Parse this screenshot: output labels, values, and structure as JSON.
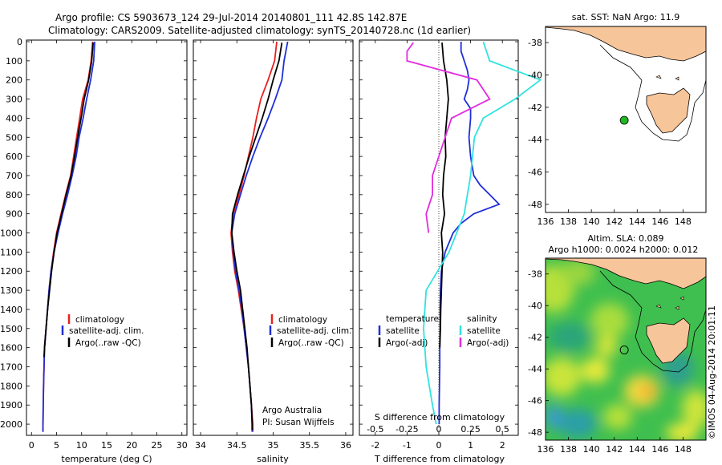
{
  "header": {
    "line1": "Argo profile: CS 5903673_124 29-Jul-2014 20140801_111 42.8S 142.87E",
    "line2": "Climatology: CARS2009. Satellite-adjusted climatology: synTS_20140728.nc (1d earlier)"
  },
  "colors": {
    "climatology": "#e8211d",
    "satellite": "#1f2fd8",
    "argo": "#000000",
    "sat_salinity": "#2fe3e0",
    "argo_salinity": "#e22be0",
    "land": "#f7c59a",
    "marker": "#1fb81f",
    "sla_green": "#3fbf4f"
  },
  "chart_data": [
    {
      "type": "line",
      "panel": "temperature",
      "xlabel": "temperature (deg C)",
      "xlim": [
        -1,
        31
      ],
      "xticks": [
        0,
        5,
        10,
        15,
        20,
        25,
        30
      ],
      "ylim": [
        2050,
        0
      ],
      "yticks": [
        0,
        100,
        200,
        300,
        400,
        500,
        600,
        700,
        800,
        900,
        1000,
        1100,
        1200,
        1300,
        1400,
        1500,
        1600,
        1700,
        1800,
        1900,
        2000
      ],
      "legend": [
        "climatology",
        "satellite-adj. clim.",
        "Argo(..raw -QC)"
      ],
      "series": [
        {
          "name": "climatology",
          "color": "#e8211d",
          "depth": [
            0,
            100,
            200,
            300,
            400,
            500,
            600,
            700,
            800,
            900,
            1000,
            1100,
            1200,
            1300,
            1400,
            1500,
            1600,
            1700,
            1800,
            1900,
            2000,
            2040
          ],
          "values": [
            12.2,
            11.9,
            11.3,
            10.2,
            9.6,
            9.0,
            8.4,
            7.8,
            6.8,
            5.9,
            5.0,
            4.4,
            3.9,
            3.5,
            3.2,
            2.9,
            2.6,
            2.5,
            2.4,
            2.35,
            2.3,
            2.3
          ]
        },
        {
          "name": "satellite-adj. clim.",
          "color": "#1f2fd8",
          "depth": [
            0,
            100,
            200,
            300,
            400,
            500,
            600,
            700,
            800,
            900,
            1000,
            1100,
            1200,
            1300,
            1400,
            1500,
            1600,
            1700,
            1800,
            1900,
            2000,
            2040
          ],
          "values": [
            12.6,
            12.4,
            11.8,
            11.0,
            10.3,
            9.5,
            8.9,
            8.1,
            7.2,
            6.2,
            5.3,
            4.5,
            3.9,
            3.5,
            3.2,
            2.9,
            2.6,
            2.5,
            2.4,
            2.35,
            2.3,
            2.3
          ]
        },
        {
          "name": "Argo(..raw -QC)",
          "color": "#000000",
          "depth": [
            5,
            100,
            200,
            300,
            400,
            500,
            600,
            700,
            800,
            900,
            1000,
            1100,
            1200,
            1300,
            1400,
            1500,
            1600,
            1650
          ],
          "values": [
            12.3,
            12.0,
            11.4,
            10.5,
            9.9,
            9.2,
            8.6,
            7.9,
            6.9,
            6.0,
            5.1,
            4.5,
            4.0,
            3.6,
            3.2,
            2.9,
            2.6,
            2.5
          ]
        }
      ]
    },
    {
      "type": "line",
      "panel": "salinity",
      "xlabel": "salinity",
      "xlim": [
        33.9,
        36.1
      ],
      "xticks": [
        34,
        34.5,
        35,
        35.5,
        36
      ],
      "ylim": [
        2050,
        0
      ],
      "legend": [
        "climatology",
        "satellite-adj. clim.",
        "Argo(..raw -QC)"
      ],
      "annotation": [
        "Argo Australia",
        "PI: Susan Wijffels"
      ],
      "series": [
        {
          "name": "climatology",
          "color": "#e8211d",
          "depth": [
            0,
            100,
            200,
            300,
            400,
            500,
            600,
            700,
            800,
            900,
            1000,
            1100,
            1200,
            1300,
            1400,
            1500,
            1600,
            1700,
            1800,
            1900,
            2000,
            2040
          ],
          "values": [
            35.05,
            35.02,
            34.93,
            34.83,
            34.77,
            34.72,
            34.66,
            34.6,
            34.53,
            34.45,
            34.42,
            34.44,
            34.47,
            34.52,
            34.56,
            34.6,
            34.63,
            34.66,
            34.68,
            34.7,
            34.72,
            34.72
          ]
        },
        {
          "name": "satellite-adj. clim.",
          "color": "#1f2fd8",
          "depth": [
            0,
            100,
            200,
            300,
            400,
            500,
            600,
            700,
            800,
            900,
            1000,
            1100,
            1200,
            1300,
            1400,
            1500,
            1600,
            1700,
            1800,
            1900,
            2000,
            2040
          ],
          "values": [
            35.2,
            35.15,
            35.12,
            35.03,
            34.93,
            34.82,
            34.72,
            34.63,
            34.55,
            34.47,
            34.43,
            34.45,
            34.48,
            34.53,
            34.57,
            34.6,
            34.63,
            34.66,
            34.68,
            34.7,
            34.71,
            34.71
          ]
        },
        {
          "name": "Argo(..raw -QC)",
          "color": "#000000",
          "depth": [
            5,
            100,
            200,
            300,
            400,
            500,
            600,
            700,
            800,
            900,
            1000,
            1100,
            1200,
            1300,
            1400,
            1500,
            1600,
            1700,
            1800,
            1900,
            2000,
            2030
          ],
          "values": [
            35.12,
            35.08,
            35.0,
            34.93,
            34.85,
            34.76,
            34.67,
            34.59,
            34.51,
            34.44,
            34.43,
            34.46,
            34.5,
            34.55,
            34.58,
            34.61,
            34.64,
            34.66,
            34.68,
            34.7,
            34.71,
            34.71
          ]
        }
      ]
    },
    {
      "type": "line",
      "panel": "difference",
      "xlabel": "T difference from climatology",
      "xlabel_top": "S difference from climatology",
      "xlim": [
        -2.5,
        2.5
      ],
      "xticks": [
        -2,
        -1,
        0,
        1,
        2
      ],
      "xticks_s_labels": [
        "-0.5",
        "-0.25",
        "0",
        "0.25",
        "0.5"
      ],
      "ylim": [
        2050,
        0
      ],
      "legend_temperature": {
        "title": "temperature",
        "items": [
          "satellite",
          "Argo(-adj)"
        ]
      },
      "legend_salinity": {
        "title": "salinity",
        "items": [
          "satellite",
          "Argo(-adj)"
        ]
      },
      "series": [
        {
          "name": "T satellite",
          "color": "#1f2fd8",
          "depth": [
            0,
            50,
            100,
            150,
            200,
            250,
            300,
            350,
            400,
            500,
            600,
            700,
            750,
            800,
            850,
            900,
            950,
            1000,
            1100,
            1200,
            1300,
            1400,
            1500,
            1600,
            1700,
            1800,
            1900,
            2000
          ],
          "values": [
            0.7,
            0.7,
            0.8,
            0.9,
            0.95,
            0.9,
            0.8,
            1.0,
            1.0,
            0.95,
            1.0,
            1.1,
            1.3,
            1.6,
            1.9,
            1.1,
            0.7,
            0.45,
            0.2,
            0.08,
            0.05,
            0.04,
            0.04,
            0.03,
            0.03,
            0.02,
            0.01,
            0.01
          ]
        },
        {
          "name": "T Argo(-adj)",
          "color": "#000000",
          "depth": [
            5,
            100,
            200,
            300,
            400,
            500,
            600,
            700,
            800,
            900,
            1000,
            1100,
            1200,
            1300,
            1400,
            1500,
            1600
          ],
          "values": [
            0.1,
            0.15,
            0.25,
            0.3,
            0.25,
            0.2,
            0.22,
            0.15,
            0.12,
            0.18,
            0.08,
            0.12,
            0.1,
            0.08,
            0.06,
            0.05,
            0.03
          ]
        },
        {
          "name": "S satellite",
          "color": "#2fe3e0",
          "depth": [
            0,
            100,
            200,
            300,
            400,
            500,
            700,
            900,
            1100,
            1300,
            1500,
            1700,
            1900,
            2000
          ],
          "values": [
            0.35,
            0.4,
            0.8,
            0.6,
            0.35,
            0.28,
            0.25,
            0.2,
            0.08,
            -0.1,
            -0.12,
            -0.1,
            -0.05,
            -0.02
          ]
        },
        {
          "name": "S Argo(-adj)",
          "color": "#e22be0",
          "depth": [
            5,
            50,
            100,
            200,
            300,
            400,
            500,
            600,
            700,
            800,
            900,
            1000
          ],
          "values": [
            -0.2,
            -0.25,
            -0.25,
            0.3,
            0.4,
            0.1,
            0.05,
            0.0,
            -0.05,
            -0.05,
            -0.1,
            -0.08
          ]
        }
      ]
    }
  ],
  "maps": {
    "sst": {
      "title": "sat. SST: NaN Argo: 11.9",
      "xticks": [
        "136",
        "138",
        "140",
        "142",
        "144",
        "146",
        "148"
      ],
      "yticks": [
        "-38",
        "-40",
        "-42",
        "-44",
        "-46",
        "-48"
      ],
      "float_lon": 142.87,
      "float_lat": -42.8
    },
    "sla": {
      "title_line1": "Altim. SLA: 0.089",
      "title_line2": "Argo h1000: 0.0024 h2000: 0.012",
      "xticks": [
        "136",
        "138",
        "140",
        "142",
        "144",
        "146",
        "148"
      ],
      "yticks": [
        "-38",
        "-40",
        "-42",
        "-44",
        "-46",
        "-48"
      ],
      "stamp": "©IMOS 04-Aug-2014 20:01:11"
    }
  }
}
